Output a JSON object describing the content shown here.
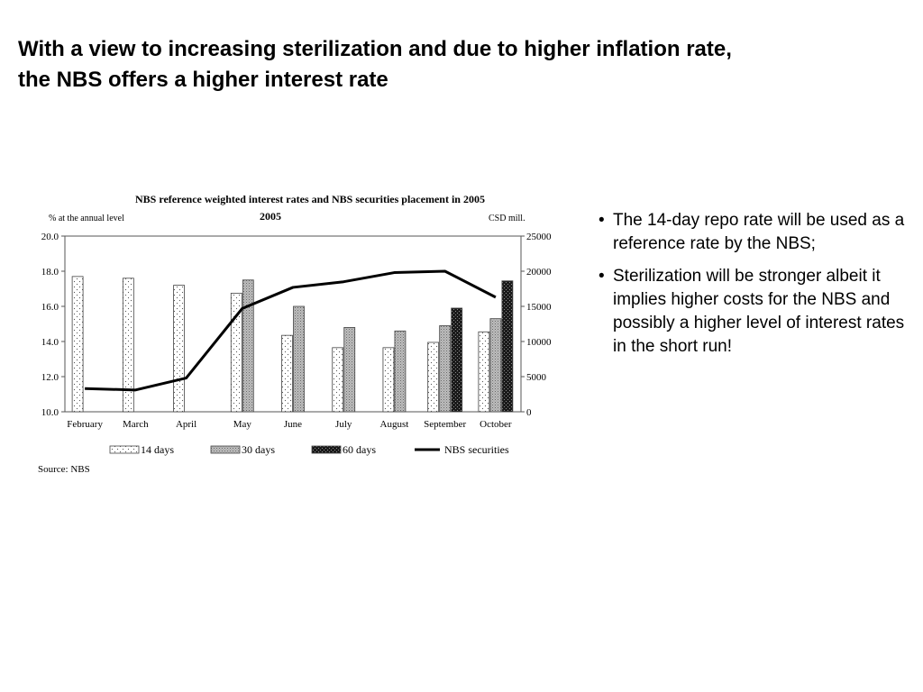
{
  "slide": {
    "title_line1": "With a view to increasing sterilization and due to higher inflation rate,",
    "title_line2": "the NBS offers a higher interest rate"
  },
  "bullets": [
    "The 14-day repo rate will be used as a reference rate by the NBS;",
    "Sterilization will be stronger albeit it implies higher costs for the NBS and possibly a higher level of interest rates in the short run!"
  ],
  "chart_data": {
    "type": "bar",
    "title": "NBS reference weighted interest rates and NBS securities placement in 2005",
    "subtitle": "2005",
    "ylabel_left": "%  at the annual level",
    "ylabel_right": "CSD mill.",
    "source": "Source: NBS",
    "categories": [
      "February",
      "March",
      "April",
      "May",
      "June",
      "July",
      "August",
      "September",
      "October"
    ],
    "ylim_left": [
      10.0,
      20.0
    ],
    "yticks_left": [
      "20.0",
      "18.0",
      "16.0",
      "14.0",
      "12.0",
      "10.0"
    ],
    "ylim_right": [
      0,
      25000
    ],
    "yticks_right": [
      "25000",
      "20000",
      "15000",
      "10000",
      "5000",
      "0"
    ],
    "series": [
      {
        "name": "14 days",
        "kind": "bar",
        "axis": "left",
        "values": [
          17.7,
          17.6,
          17.2,
          16.75,
          14.35,
          13.65,
          13.65,
          13.95,
          14.55
        ]
      },
      {
        "name": "30 days",
        "kind": "bar",
        "axis": "left",
        "values": [
          null,
          null,
          null,
          17.5,
          16.0,
          14.8,
          14.6,
          14.9,
          15.3
        ]
      },
      {
        "name": "60 days",
        "kind": "bar",
        "axis": "left",
        "values": [
          null,
          null,
          null,
          null,
          null,
          null,
          null,
          15.9,
          17.45
        ]
      },
      {
        "name": "NBS securities",
        "kind": "line",
        "axis": "right",
        "values": [
          3300,
          3100,
          4800,
          14700,
          17700,
          18500,
          19800,
          20000,
          16300
        ]
      }
    ],
    "grid": false,
    "legend_position": "bottom"
  }
}
